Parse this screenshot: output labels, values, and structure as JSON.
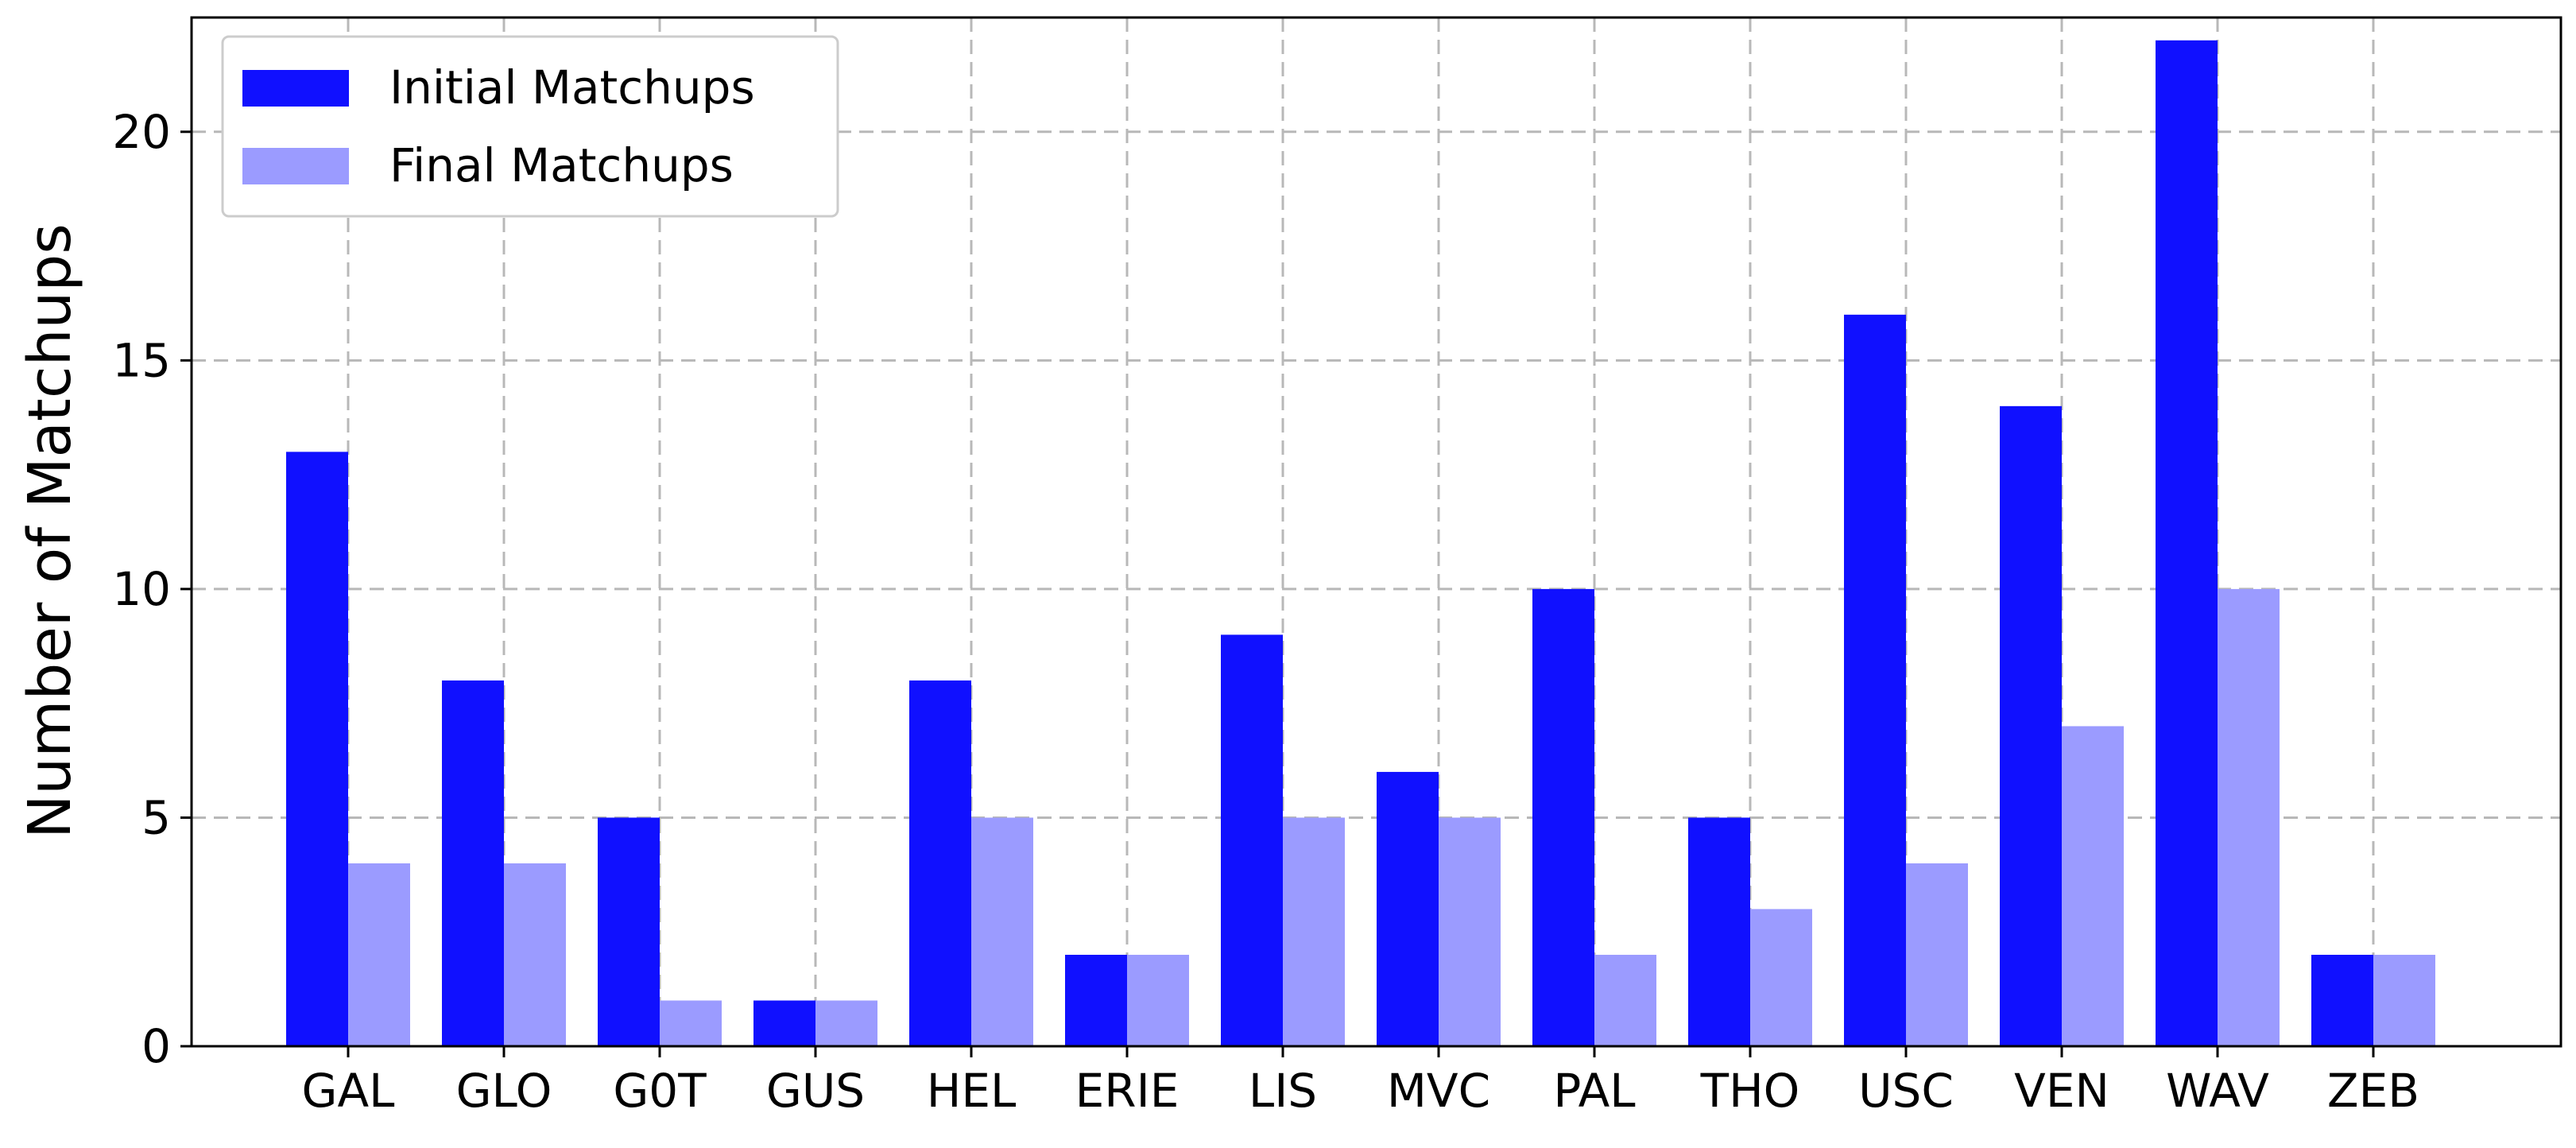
{
  "chart_data": {
    "type": "bar",
    "categories": [
      "GAL",
      "GLO",
      "G0T",
      "GUS",
      "HEL",
      "ERIE",
      "LIS",
      "MVC",
      "PAL",
      "THO",
      "USC",
      "VEN",
      "WAV",
      "ZEB"
    ],
    "series": [
      {
        "name": "Initial Matchups",
        "color": "#1010ff",
        "values": [
          13,
          8,
          5,
          1,
          8,
          2,
          9,
          6,
          10,
          5,
          16,
          14,
          22,
          2
        ]
      },
      {
        "name": "Final Matchups",
        "color": "#9b9bff",
        "values": [
          4,
          4,
          1,
          1,
          5,
          2,
          5,
          5,
          2,
          3,
          4,
          7,
          10,
          2
        ]
      }
    ],
    "title": "",
    "xlabel": "",
    "ylabel": "Number of Matchups",
    "ylim": [
      0,
      22.5
    ],
    "yticks": [
      0,
      5,
      10,
      15,
      20
    ],
    "grid": true,
    "legend_position": "top-left"
  }
}
